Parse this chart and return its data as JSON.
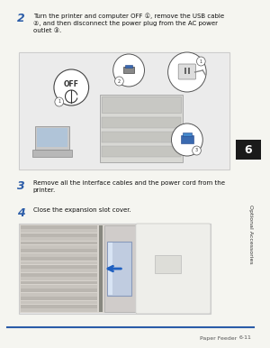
{
  "page_bg": "#f5f5f0",
  "content_bg": "#f5f5f0",
  "step2_number": "2",
  "step2_text_line1": "Turn the printer and computer OFF ",
  "step2_ref1": "①",
  "step2_text_line2": ", remove the USB cable",
  "step2_ref2": "②",
  "step2_text_line3": ", and then disconnect the power plug from the AC power",
  "step2_text_line4": "outlet ",
  "step2_ref3": "③",
  "step2_text_line5": ".",
  "step3_number": "3",
  "step3_text": "Remove all the interface cables and the power cord from the\nprinter.",
  "step4_number": "4",
  "step4_text": "Close the expansion slot cover.",
  "footer_left": "Paper Feeder",
  "footer_right": "6-11",
  "sidebar_text": "Optional Accessories",
  "sidebar_num": "6",
  "sidebar_bg": "#1a1a1a",
  "sidebar_text_color": "#ffffff",
  "sidebar_num_bg": "#1a1a1a",
  "box_border_color": "#cccccc",
  "step_number_color": "#2b5ca8",
  "step_text_color": "#111111",
  "footer_line_color": "#2b5ca8",
  "footer_text_color": "#555555",
  "img1_bg": "#f0eeec",
  "img2_bg": "#e8e8e8"
}
